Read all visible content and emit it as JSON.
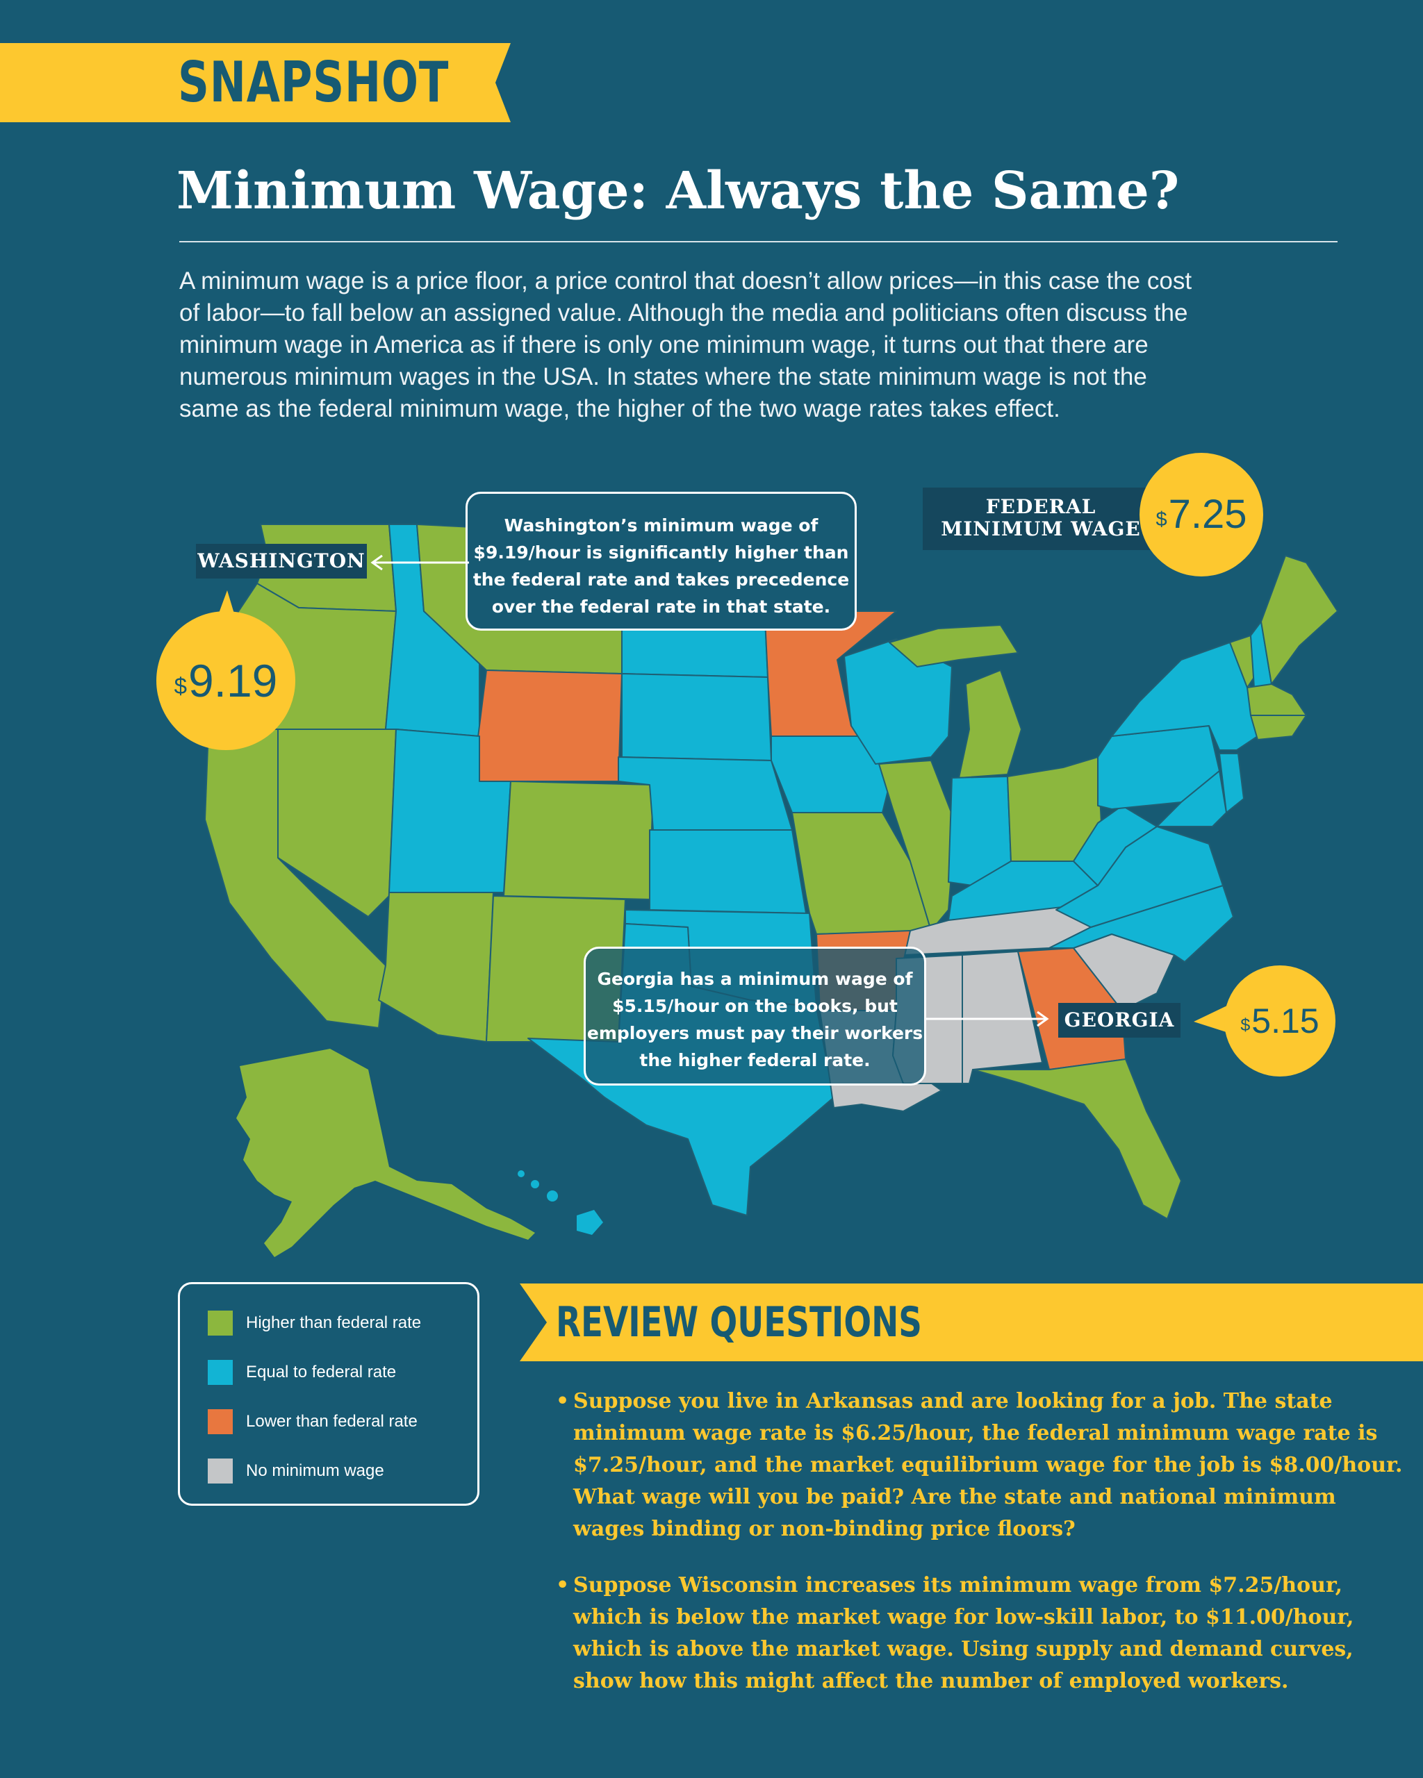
{
  "snapshot": {
    "label": "SNAPSHOT"
  },
  "title": "Minimum Wage: Always the Same?",
  "intro": [
    "A minimum wage is a price floor, a price control that doesn’t allow prices—in this case the cost",
    "of labor—to fall below an assigned value.  Although the media and politicians often discuss the",
    "minimum wage in America as if there is only one minimum wage, it turns out that there are",
    "numerous minimum wages in the USA. In states where the state minimum wage is not the",
    "same as the federal minimum wage, the higher of the two wage rates takes effect."
  ],
  "colors": {
    "background": "#175a73",
    "accent": "#fdc82f",
    "higher": "#8cb73e",
    "equal": "#12b4d4",
    "lower": "#e8773f",
    "none": "#c4c6c8"
  },
  "federal": {
    "line1": "FEDERAL",
    "line2": "MINIMUM WAGE",
    "currency": "$",
    "amount": "7.25"
  },
  "washington": {
    "tag": "WASHINGTON",
    "currency": "$",
    "amount": "9.19",
    "callout": [
      "Washington’s minimum wage of",
      "$9.19/hour is significantly higher than",
      "the federal rate and takes precedence",
      "over the federal rate in that state."
    ]
  },
  "georgia": {
    "tag": "GEORGIA",
    "currency": "$",
    "amount": "5.15",
    "callout": [
      "Georgia has a minimum wage of",
      "$5.15/hour on the books, but",
      "employers must pay their workers",
      "the higher federal rate."
    ]
  },
  "legend": [
    {
      "label": "Higher than federal rate",
      "color": "#8cb73e"
    },
    {
      "label": "Equal to federal rate",
      "color": "#12b4d4"
    },
    {
      "label": "Lower than federal rate",
      "color": "#e8773f"
    },
    {
      "label": "No minimum wage",
      "color": "#c4c6c8"
    }
  ],
  "review": {
    "title": "REVIEW QUESTIONS",
    "questions": [
      [
        "Suppose you live in Arkansas and are looking for a job.  The state",
        "minimum wage rate is $6.25/hour, the federal minimum wage rate is",
        "$7.25/hour, and the market equilibrium wage for the job is $8.00/hour.",
        "What wage will you be paid?  Are the state and national minimum",
        "wages binding or non-binding price floors?"
      ],
      [
        "Suppose Wisconsin increases its minimum wage from $7.25/hour,",
        "which is below the market wage for low-skill labor, to $11.00/hour,",
        "which is above the market wage. Using supply and demand curves,",
        "show how this might affect the number of employed workers."
      ]
    ]
  }
}
